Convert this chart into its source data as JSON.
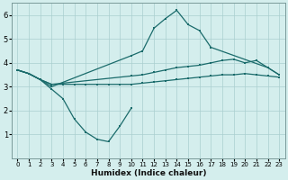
{
  "xlabel": "Humidex (Indice chaleur)",
  "xlim": [
    -0.5,
    23.5
  ],
  "ylim": [
    0,
    6.5
  ],
  "yticks": [
    1,
    2,
    3,
    4,
    5,
    6
  ],
  "xticks": [
    0,
    1,
    2,
    3,
    4,
    5,
    6,
    7,
    8,
    9,
    10,
    11,
    12,
    13,
    14,
    15,
    16,
    17,
    18,
    19,
    20,
    21,
    22,
    23
  ],
  "bg_color": "#d4eeed",
  "line_color": "#1a6b6b",
  "grid_color": "#aacfcf",
  "lines": [
    {
      "x": [
        0,
        1,
        2,
        3,
        4,
        5,
        6,
        7,
        8,
        9,
        10
      ],
      "y": [
        3.7,
        3.55,
        3.3,
        2.9,
        2.5,
        1.65,
        1.1,
        0.8,
        0.7,
        1.35,
        2.1
      ]
    },
    {
      "x": [
        0,
        1,
        2,
        3,
        10,
        11,
        12,
        13,
        14,
        15,
        16,
        17,
        22,
        23
      ],
      "y": [
        3.7,
        3.55,
        3.3,
        3.0,
        4.3,
        4.5,
        5.45,
        5.85,
        6.2,
        5.6,
        5.35,
        4.65,
        3.8,
        3.5
      ]
    },
    {
      "x": [
        0,
        1,
        2,
        3,
        10,
        11,
        12,
        13,
        14,
        15,
        16,
        17,
        18,
        19,
        20,
        21,
        22,
        23
      ],
      "y": [
        3.7,
        3.55,
        3.3,
        3.1,
        3.45,
        3.5,
        3.6,
        3.7,
        3.8,
        3.85,
        3.9,
        4.0,
        4.1,
        4.15,
        4.0,
        4.1,
        3.8,
        3.5
      ]
    },
    {
      "x": [
        0,
        1,
        2,
        3,
        4,
        5,
        6,
        7,
        8,
        9,
        10,
        11,
        12,
        13,
        14,
        15,
        16,
        17,
        18,
        19,
        20,
        21,
        22,
        23
      ],
      "y": [
        3.7,
        3.55,
        3.3,
        3.1,
        3.1,
        3.1,
        3.1,
        3.1,
        3.1,
        3.1,
        3.1,
        3.15,
        3.2,
        3.25,
        3.3,
        3.35,
        3.4,
        3.45,
        3.5,
        3.5,
        3.55,
        3.5,
        3.45,
        3.4
      ]
    }
  ]
}
